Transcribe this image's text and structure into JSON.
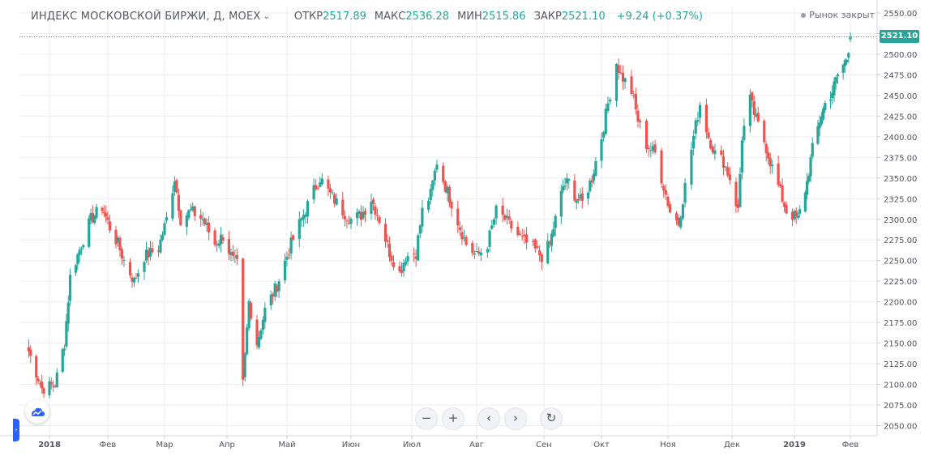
{
  "header": {
    "symbol": "ИНДЕКС МОСКОВСКОЙ БИРЖИ, Д, MOEX",
    "caret": "⌄",
    "open_label": "ОТКР",
    "open_value": "2517.89",
    "high_label": "МАКС",
    "high_value": "2536.28",
    "low_label": "МИН",
    "low_value": "2515.86",
    "close_label": "ЗАКР",
    "close_value": "2521.10",
    "change": "+9.24 (+0.37%)"
  },
  "status": {
    "text": "Рынок закрыт"
  },
  "last_price_label": "2521.10",
  "colors": {
    "up": "#26a69a",
    "down": "#ef5350",
    "grid": "#ecedf2",
    "axis_text": "#50535e"
  },
  "controls": {
    "zoom_out": "−",
    "zoom_in": "+",
    "scroll_left": "‹",
    "scroll_right": "›",
    "reset": "↻"
  },
  "icons": {
    "logo": "tradingview-cloud-icon",
    "side_toggle": "chevron-right-icon"
  },
  "chart_data": {
    "type": "candlestick",
    "title": "ИНДЕКС МОСКОВСКОЙ БИРЖИ, Д, MOEX",
    "y_ticks": [
      "2050.00",
      "2075.00",
      "2100.00",
      "2125.00",
      "2150.00",
      "2175.00",
      "2200.00",
      "2225.00",
      "2250.00",
      "2275.00",
      "2300.00",
      "2325.00",
      "2350.00",
      "2375.00",
      "2400.00",
      "2425.00",
      "2450.00",
      "2475.00",
      "2500.00",
      "2525.00",
      "2550.00"
    ],
    "ylim": [
      2050,
      2550
    ],
    "x_ticks": [
      {
        "label": "2018",
        "date": "2018-01-01",
        "bold": true
      },
      {
        "label": "Фев",
        "date": "2018-02-01"
      },
      {
        "label": "Мар",
        "date": "2018-03-01"
      },
      {
        "label": "Апр",
        "date": "2018-04-01"
      },
      {
        "label": "Май",
        "date": "2018-05-01"
      },
      {
        "label": "Июн",
        "date": "2018-06-01"
      },
      {
        "label": "Июл",
        "date": "2018-07-01"
      },
      {
        "label": "Авг",
        "date": "2018-08-01"
      },
      {
        "label": "Сен",
        "date": "2018-09-01"
      },
      {
        "label": "Окт",
        "date": "2018-10-01"
      },
      {
        "label": "Ноя",
        "date": "2018-11-01"
      },
      {
        "label": "Дек",
        "date": "2018-12-01"
      },
      {
        "label": "2019",
        "date": "2019-01-01",
        "bold": true
      },
      {
        "label": "Фев",
        "date": "2019-02-01"
      }
    ],
    "last_price": 2521.1,
    "close_path": [
      [
        "2017-12-21",
        2140
      ],
      [
        "2017-12-28",
        2095
      ],
      [
        "2018-01-04",
        2100
      ],
      [
        "2018-01-09",
        2150
      ],
      [
        "2018-01-12",
        2230
      ],
      [
        "2018-01-18",
        2270
      ],
      [
        "2018-01-23",
        2300
      ],
      [
        "2018-01-29",
        2315
      ],
      [
        "2018-02-02",
        2290
      ],
      [
        "2018-02-06",
        2270
      ],
      [
        "2018-02-09",
        2250
      ],
      [
        "2018-02-14",
        2225
      ],
      [
        "2018-02-19",
        2255
      ],
      [
        "2018-02-26",
        2265
      ],
      [
        "2018-03-02",
        2300
      ],
      [
        "2018-03-06",
        2350
      ],
      [
        "2018-03-09",
        2300
      ],
      [
        "2018-03-14",
        2310
      ],
      [
        "2018-03-20",
        2300
      ],
      [
        "2018-03-26",
        2270
      ],
      [
        "2018-03-30",
        2280
      ],
      [
        "2018-04-04",
        2250
      ],
      [
        "2018-04-06",
        2245
      ],
      [
        "2018-04-09",
        2100
      ],
      [
        "2018-04-12",
        2200
      ],
      [
        "2018-04-16",
        2150
      ],
      [
        "2018-04-20",
        2190
      ],
      [
        "2018-04-26",
        2220
      ],
      [
        "2018-05-03",
        2270
      ],
      [
        "2018-05-08",
        2300
      ],
      [
        "2018-05-14",
        2335
      ],
      [
        "2018-05-17",
        2350
      ],
      [
        "2018-05-22",
        2330
      ],
      [
        "2018-05-28",
        2310
      ],
      [
        "2018-06-01",
        2300
      ],
      [
        "2018-06-06",
        2305
      ],
      [
        "2018-06-11",
        2325
      ],
      [
        "2018-06-15",
        2300
      ],
      [
        "2018-06-20",
        2260
      ],
      [
        "2018-06-25",
        2235
      ],
      [
        "2018-06-28",
        2255
      ],
      [
        "2018-07-03",
        2260
      ],
      [
        "2018-07-06",
        2310
      ],
      [
        "2018-07-10",
        2330
      ],
      [
        "2018-07-13",
        2370
      ],
      [
        "2018-07-17",
        2340
      ],
      [
        "2018-07-20",
        2320
      ],
      [
        "2018-07-24",
        2290
      ],
      [
        "2018-07-27",
        2270
      ],
      [
        "2018-08-01",
        2255
      ],
      [
        "2018-08-06",
        2270
      ],
      [
        "2018-08-10",
        2310
      ],
      [
        "2018-08-14",
        2300
      ],
      [
        "2018-08-17",
        2290
      ],
      [
        "2018-08-22",
        2275
      ],
      [
        "2018-08-27",
        2265
      ],
      [
        "2018-08-31",
        2255
      ],
      [
        "2018-09-04",
        2270
      ],
      [
        "2018-09-07",
        2300
      ],
      [
        "2018-09-11",
        2340
      ],
      [
        "2018-09-14",
        2345
      ],
      [
        "2018-09-18",
        2325
      ],
      [
        "2018-09-21",
        2320
      ],
      [
        "2018-09-26",
        2350
      ],
      [
        "2018-10-01",
        2400
      ],
      [
        "2018-10-04",
        2440
      ],
      [
        "2018-10-08",
        2490
      ],
      [
        "2018-10-10",
        2475
      ],
      [
        "2018-10-15",
        2455
      ],
      [
        "2018-10-18",
        2420
      ],
      [
        "2018-10-22",
        2390
      ],
      [
        "2018-10-26",
        2380
      ],
      [
        "2018-10-30",
        2340
      ],
      [
        "2018-11-02",
        2310
      ],
      [
        "2018-11-06",
        2295
      ],
      [
        "2018-11-09",
        2340
      ],
      [
        "2018-11-13",
        2400
      ],
      [
        "2018-11-16",
        2440
      ],
      [
        "2018-11-20",
        2400
      ],
      [
        "2018-11-23",
        2380
      ],
      [
        "2018-11-27",
        2370
      ],
      [
        "2018-11-30",
        2350
      ],
      [
        "2018-12-04",
        2310
      ],
      [
        "2018-12-06",
        2400
      ],
      [
        "2018-12-10",
        2445
      ],
      [
        "2018-12-13",
        2420
      ],
      [
        "2018-12-17",
        2395
      ],
      [
        "2018-12-20",
        2370
      ],
      [
        "2018-12-24",
        2340
      ],
      [
        "2018-12-28",
        2310
      ],
      [
        "2019-01-03",
        2300
      ],
      [
        "2019-01-08",
        2345
      ],
      [
        "2019-01-11",
        2385
      ],
      [
        "2019-01-15",
        2420
      ],
      [
        "2019-01-18",
        2440
      ],
      [
        "2019-01-22",
        2455
      ],
      [
        "2019-01-25",
        2475
      ],
      [
        "2019-01-30",
        2495
      ],
      [
        "2019-02-01",
        2521.1
      ]
    ]
  }
}
